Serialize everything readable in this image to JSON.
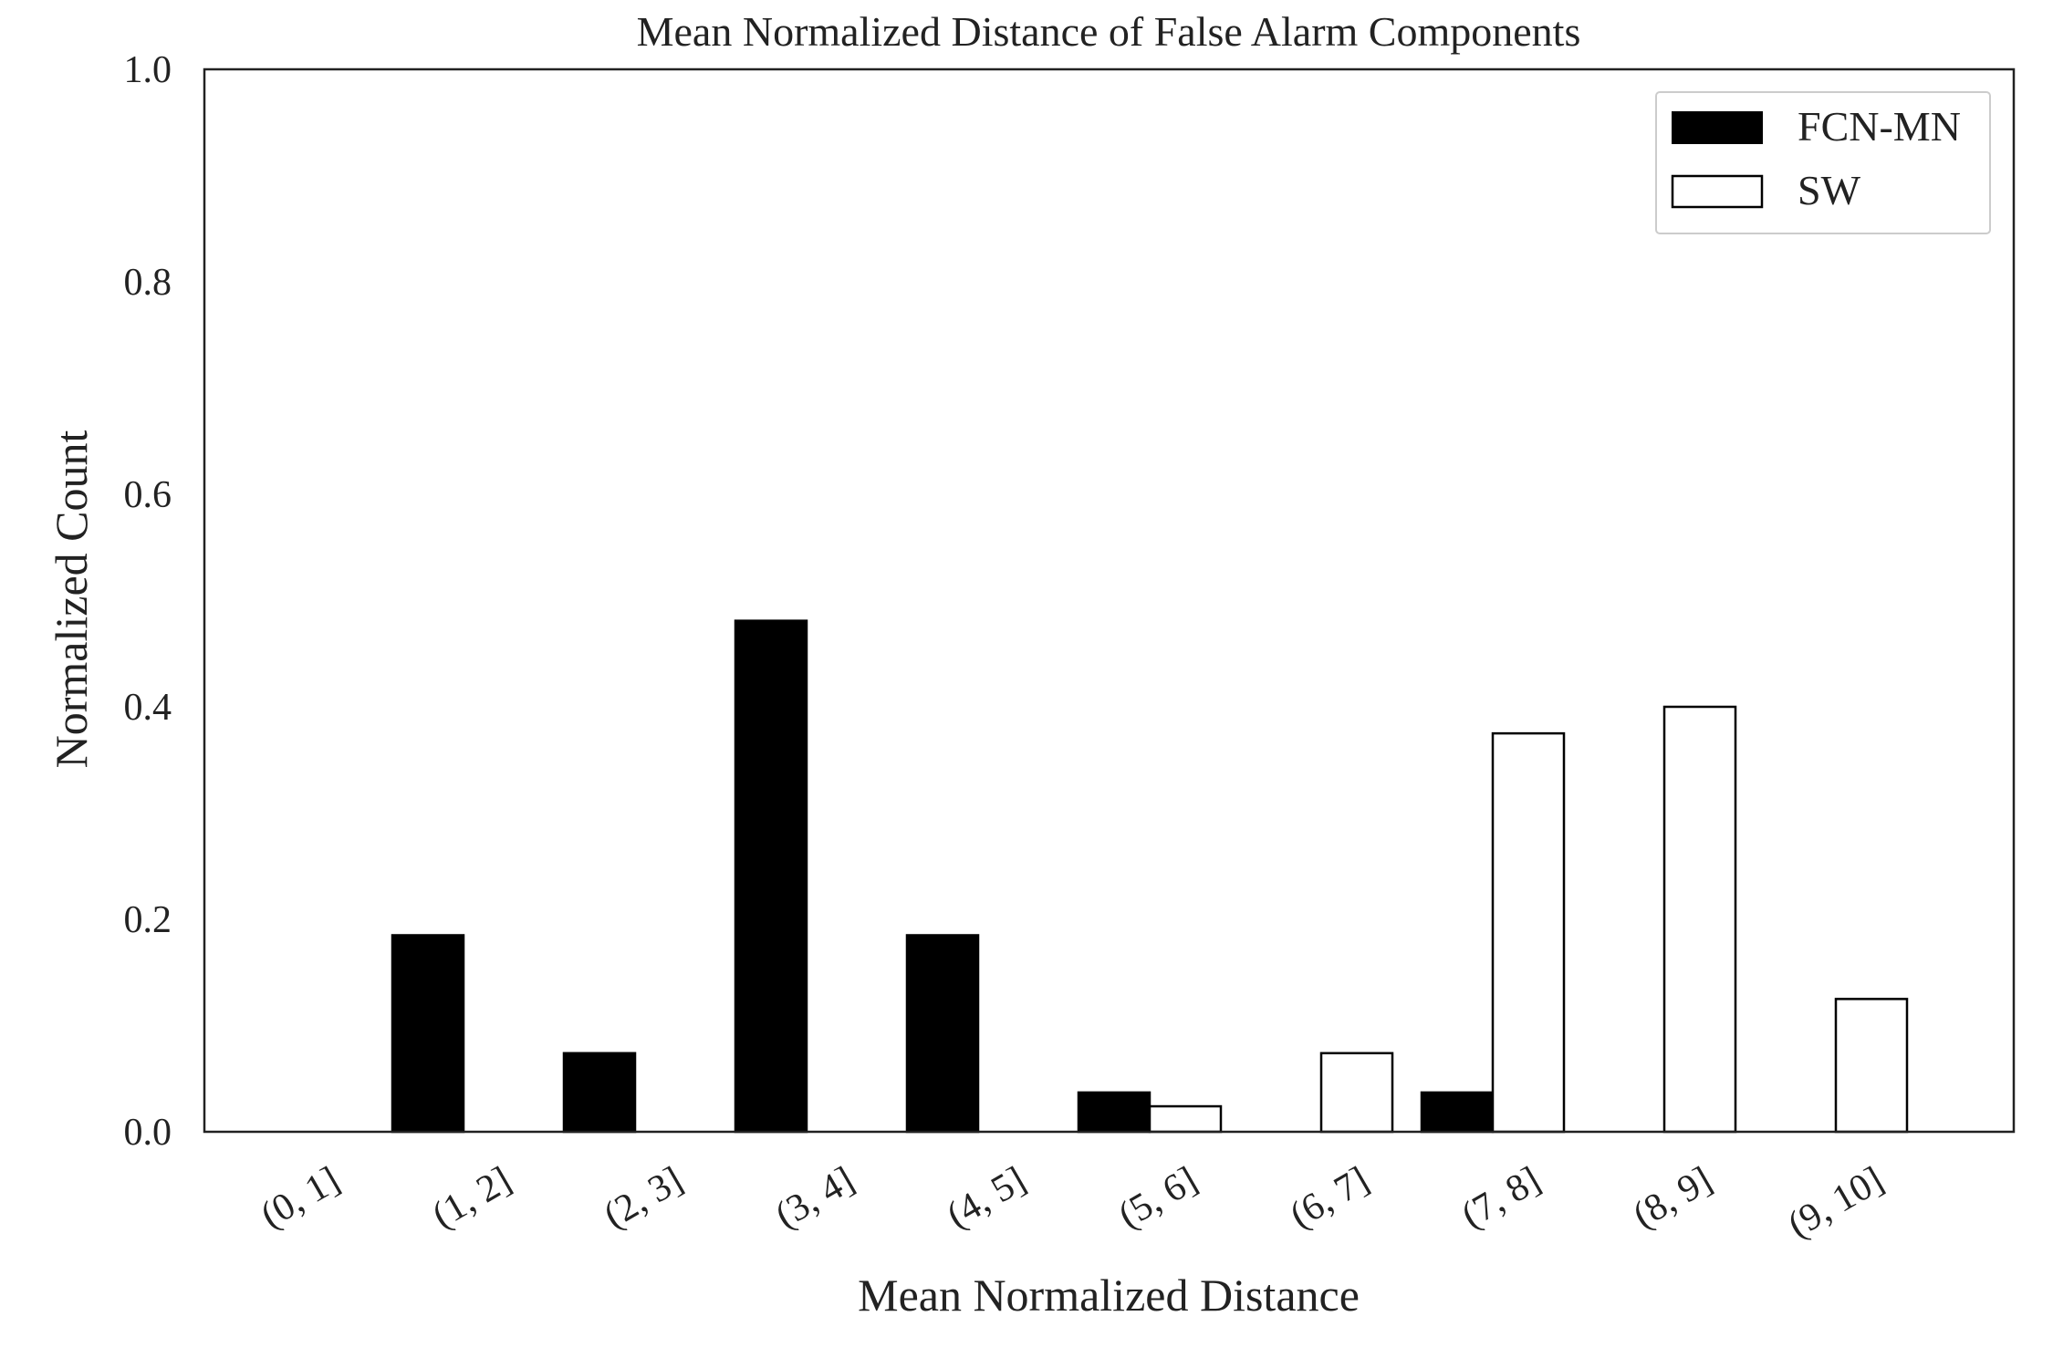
{
  "chart_data": {
    "type": "bar",
    "title": "Mean Normalized Distance of False Alarm Components",
    "xlabel": "Mean Normalized Distance",
    "ylabel": "Normalized Count",
    "ylim": [
      0,
      1.0
    ],
    "yticks": [
      "0.0",
      "0.2",
      "0.4",
      "0.6",
      "0.8",
      "1.0"
    ],
    "categories": [
      "(0, 1]",
      "(1, 2]",
      "(2, 3]",
      "(3, 4]",
      "(4, 5]",
      "(5, 6]",
      "(6, 7]",
      "(7, 8]",
      "(8, 9]",
      "(9, 10]"
    ],
    "series": [
      {
        "name": "FCN-MN",
        "fill": "#000000",
        "values": [
          0.0,
          0.185,
          0.074,
          0.481,
          0.185,
          0.037,
          0.0,
          0.037,
          0.0,
          0.0
        ]
      },
      {
        "name": "SW",
        "fill": "#ffffff",
        "values": [
          0.0,
          0.0,
          0.0,
          0.0,
          0.0,
          0.024,
          0.074,
          0.375,
          0.4,
          0.125
        ]
      }
    ],
    "grid": false,
    "legend_position": "top-right"
  }
}
